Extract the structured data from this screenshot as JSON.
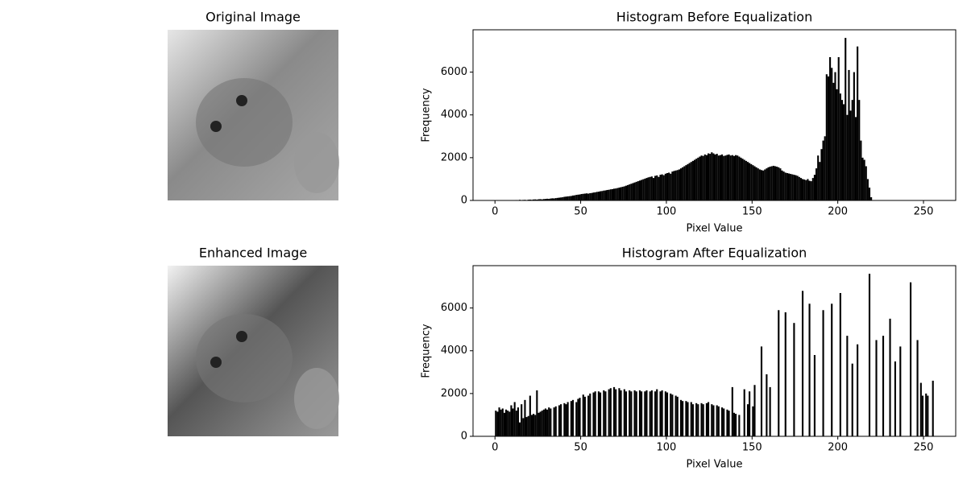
{
  "chart_data": [
    {
      "type": "image",
      "title": "Original Image"
    },
    {
      "type": "histogram",
      "title": "Histogram Before Equalization",
      "xlabel": "Pixel Value",
      "ylabel": "Frequency",
      "color": "#000000",
      "xlim": [
        -12.8,
        268.8
      ],
      "ylim": [
        0,
        7980
      ],
      "xticks": [
        0,
        50,
        100,
        150,
        200,
        250
      ],
      "yticks": [
        0,
        2000,
        4000,
        6000
      ],
      "bins": [
        0,
        1,
        2,
        3,
        4,
        5,
        6,
        7,
        8,
        9,
        10,
        11,
        12,
        13,
        14,
        15,
        16,
        17,
        18,
        19,
        20,
        21,
        22,
        23,
        24,
        25,
        26,
        27,
        28,
        29,
        30,
        31,
        32,
        33,
        34,
        35,
        36,
        37,
        38,
        39,
        40,
        41,
        42,
        43,
        44,
        45,
        46,
        47,
        48,
        49,
        50,
        51,
        52,
        53,
        54,
        55,
        56,
        57,
        58,
        59,
        60,
        61,
        62,
        63,
        64,
        65,
        66,
        67,
        68,
        69,
        70,
        71,
        72,
        73,
        74,
        75,
        76,
        77,
        78,
        79,
        80,
        81,
        82,
        83,
        84,
        85,
        86,
        87,
        88,
        89,
        90,
        91,
        92,
        93,
        94,
        95,
        96,
        97,
        98,
        99,
        100,
        101,
        102,
        103,
        104,
        105,
        106,
        107,
        108,
        109,
        110,
        111,
        112,
        113,
        114,
        115,
        116,
        117,
        118,
        119,
        120,
        121,
        122,
        123,
        124,
        125,
        126,
        127,
        128,
        129,
        130,
        131,
        132,
        133,
        134,
        135,
        136,
        137,
        138,
        139,
        140,
        141,
        142,
        143,
        144,
        145,
        146,
        147,
        148,
        149,
        150,
        151,
        152,
        153,
        154,
        155,
        156,
        157,
        158,
        159,
        160,
        161,
        162,
        163,
        164,
        165,
        166,
        167,
        168,
        169,
        170,
        171,
        172,
        173,
        174,
        175,
        176,
        177,
        178,
        179,
        180,
        181,
        182,
        183,
        184,
        185,
        186,
        187,
        188,
        189,
        190,
        191,
        192,
        193,
        194,
        195,
        196,
        197,
        198,
        199,
        200,
        201,
        202,
        203,
        204,
        205,
        206,
        207,
        208,
        209,
        210,
        211,
        212,
        213,
        214,
        215,
        216,
        217,
        218,
        219,
        220,
        221,
        222,
        223,
        224,
        225,
        226,
        227,
        228,
        229,
        230,
        231,
        232,
        233,
        234,
        235,
        236,
        237,
        238,
        239,
        240,
        241,
        242,
        243,
        244,
        245,
        246,
        247,
        248,
        249,
        250,
        251,
        252,
        253,
        254,
        255,
        256
      ],
      "counts": [
        0,
        0,
        0,
        0,
        0,
        0,
        0,
        0,
        0,
        0,
        0,
        0,
        20,
        0,
        30,
        0,
        25,
        30,
        0,
        35,
        40,
        30,
        45,
        50,
        40,
        55,
        60,
        50,
        65,
        70,
        80,
        75,
        90,
        100,
        95,
        110,
        120,
        130,
        140,
        150,
        170,
        180,
        190,
        200,
        210,
        230,
        240,
        260,
        270,
        280,
        300,
        310,
        320,
        330,
        320,
        340,
        350,
        370,
        380,
        400,
        410,
        430,
        440,
        460,
        470,
        490,
        500,
        520,
        530,
        550,
        560,
        580,
        600,
        620,
        640,
        660,
        690,
        720,
        750,
        780,
        810,
        840,
        870,
        900,
        930,
        960,
        990,
        1020,
        1050,
        1080,
        1100,
        1120,
        1050,
        1150,
        1170,
        1100,
        1200,
        1220,
        1180,
        1250,
        1280,
        1300,
        1250,
        1350,
        1380,
        1400,
        1420,
        1450,
        1500,
        1550,
        1600,
        1650,
        1700,
        1750,
        1800,
        1850,
        1900,
        1950,
        2000,
        2050,
        2100,
        2080,
        2150,
        2120,
        2200,
        2180,
        2250,
        2200,
        2150,
        2180,
        2100,
        2120,
        2150,
        2080,
        2100,
        2130,
        2150,
        2100,
        2120,
        2080,
        2120,
        2100,
        2050,
        2000,
        1950,
        1900,
        1850,
        1800,
        1750,
        1700,
        1650,
        1600,
        1550,
        1500,
        1450,
        1420,
        1400,
        1450,
        1500,
        1550,
        1580,
        1600,
        1620,
        1600,
        1580,
        1550,
        1500,
        1400,
        1350,
        1300,
        1280,
        1260,
        1240,
        1220,
        1200,
        1180,
        1150,
        1100,
        1050,
        1000,
        980,
        950,
        1000,
        920,
        900,
        1050,
        1200,
        1500,
        2100,
        1800,
        2400,
        2800,
        3000,
        5900,
        5800,
        6700,
        6200,
        5500,
        6000,
        5200,
        6700,
        5000,
        4700,
        4500,
        7600,
        4000,
        6100,
        4200,
        4700,
        6000,
        3900,
        7200,
        4700,
        2800,
        2000,
        1900,
        1600,
        1000,
        600,
        150,
        0,
        0,
        0,
        0,
        0,
        0,
        0,
        0,
        0,
        0,
        0,
        0,
        0,
        0,
        0,
        0,
        0,
        0,
        0,
        0,
        0,
        0,
        0,
        0,
        0,
        0,
        0,
        0,
        0,
        0,
        0,
        0,
        0,
        0,
        0,
        0
      ]
    },
    {
      "type": "image",
      "title": "Enhanced Image"
    },
    {
      "type": "histogram",
      "title": "Histogram After Equalization",
      "xlabel": "Pixel Value",
      "ylabel": "Frequency",
      "color": "#000000",
      "xlim": [
        -12.8,
        268.8
      ],
      "ylim": [
        0,
        7980
      ],
      "xticks": [
        0,
        50,
        100,
        150,
        200,
        250
      ],
      "yticks": [
        0,
        2000,
        4000,
        6000
      ],
      "bins": [
        0,
        1,
        2,
        3,
        4,
        5,
        6,
        7,
        8,
        9,
        10,
        11,
        12,
        13,
        14,
        15,
        16,
        17,
        18,
        19,
        20,
        21,
        22,
        23,
        24,
        25,
        26,
        27,
        28,
        29,
        30,
        31,
        32,
        33,
        34,
        35,
        36,
        37,
        38,
        39,
        40,
        41,
        42,
        43,
        44,
        45,
        46,
        47,
        48,
        49,
        50,
        51,
        52,
        53,
        54,
        55,
        56,
        57,
        58,
        59,
        60,
        61,
        62,
        63,
        64,
        65,
        66,
        67,
        68,
        69,
        70,
        71,
        72,
        73,
        74,
        75,
        76,
        77,
        78,
        79,
        80,
        81,
        82,
        83,
        84,
        85,
        86,
        87,
        88,
        89,
        90,
        91,
        92,
        93,
        94,
        95,
        96,
        97,
        98,
        99,
        100,
        101,
        102,
        103,
        104,
        105,
        106,
        107,
        108,
        109,
        110,
        111,
        112,
        113,
        114,
        115,
        116,
        117,
        118,
        119,
        120,
        121,
        122,
        123,
        124,
        125,
        126,
        127,
        128,
        129,
        130,
        131,
        132,
        133,
        134,
        135,
        136,
        137,
        138,
        139,
        140,
        141,
        142,
        143,
        144,
        145,
        146,
        147,
        148,
        149,
        150,
        151,
        152,
        153,
        154,
        155,
        156,
        157,
        158,
        159,
        160,
        161,
        162,
        163,
        164,
        165,
        166,
        167,
        168,
        169,
        170,
        171,
        172,
        173,
        174,
        175,
        176,
        177,
        178,
        179,
        180,
        181,
        182,
        183,
        184,
        185,
        186,
        187,
        188,
        189,
        190,
        191,
        192,
        193,
        194,
        195,
        196,
        197,
        198,
        199,
        200,
        201,
        202,
        203,
        204,
        205,
        206,
        207,
        208,
        209,
        210,
        211,
        212,
        213,
        214,
        215,
        216,
        217,
        218,
        219,
        220,
        221,
        222,
        223,
        224,
        225,
        226,
        227,
        228,
        229,
        230,
        231,
        232,
        233,
        234,
        235,
        236,
        237,
        238,
        239,
        240,
        241,
        242,
        243,
        244,
        245,
        246,
        247,
        248,
        249,
        250,
        251,
        252,
        253,
        254,
        255,
        256
      ],
      "counts": [
        1200,
        1150,
        1350,
        1250,
        1300,
        1100,
        1250,
        1200,
        1150,
        1450,
        1300,
        1600,
        1200,
        1350,
        650,
        1500,
        850,
        1700,
        900,
        950,
        1900,
        1000,
        1050,
        1000,
        2150,
        1100,
        1150,
        1200,
        1250,
        1300,
        1250,
        1350,
        1300,
        0,
        1350,
        1400,
        0,
        1450,
        1500,
        0,
        1550,
        1500,
        1600,
        0,
        1650,
        1700,
        0,
        1600,
        1750,
        1800,
        0,
        1950,
        1850,
        0,
        1900,
        2000,
        0,
        2050,
        2100,
        0,
        2100,
        2050,
        0,
        2150,
        2100,
        0,
        2200,
        2250,
        0,
        2300,
        2200,
        0,
        2250,
        2150,
        0,
        2200,
        2100,
        0,
        2150,
        2100,
        0,
        2150,
        2100,
        0,
        2150,
        2100,
        0,
        2100,
        2150,
        0,
        2100,
        2150,
        0,
        2100,
        2200,
        0,
        2100,
        2150,
        0,
        2100,
        2050,
        0,
        2000,
        1950,
        0,
        1900,
        1850,
        0,
        1700,
        1650,
        0,
        1650,
        1600,
        0,
        1600,
        1500,
        0,
        1550,
        1500,
        0,
        1550,
        1500,
        0,
        1550,
        1600,
        0,
        1500,
        1450,
        0,
        1450,
        1400,
        0,
        1350,
        1300,
        0,
        1250,
        1200,
        0,
        2300,
        1100,
        1050,
        0,
        1000,
        0,
        0,
        2200,
        0,
        1500,
        2100,
        0,
        1400,
        2400,
        0,
        0,
        0,
        4200,
        0,
        0,
        2900,
        0,
        2300,
        0,
        0,
        0,
        0,
        5900,
        0,
        0,
        0,
        5800,
        0,
        0,
        0,
        0,
        5300,
        0,
        0,
        0,
        0,
        6800,
        0,
        0,
        0,
        6200,
        0,
        0,
        3800,
        0,
        0,
        0,
        0,
        5900,
        0,
        0,
        0,
        0,
        6200,
        0,
        0,
        0,
        0,
        6700,
        0,
        0,
        0,
        4700,
        0,
        0,
        3400,
        0,
        0,
        4300,
        0,
        0,
        0,
        0,
        0,
        0,
        7600,
        0,
        0,
        0,
        4500,
        0,
        0,
        0,
        4700,
        0,
        0,
        0,
        5500,
        0,
        0,
        3500,
        0,
        0,
        4200,
        0,
        0,
        0,
        0,
        0,
        7200,
        0,
        0,
        0,
        4500,
        0,
        2500,
        1900,
        0,
        2000,
        1900,
        0,
        0,
        2600
      ]
    }
  ]
}
